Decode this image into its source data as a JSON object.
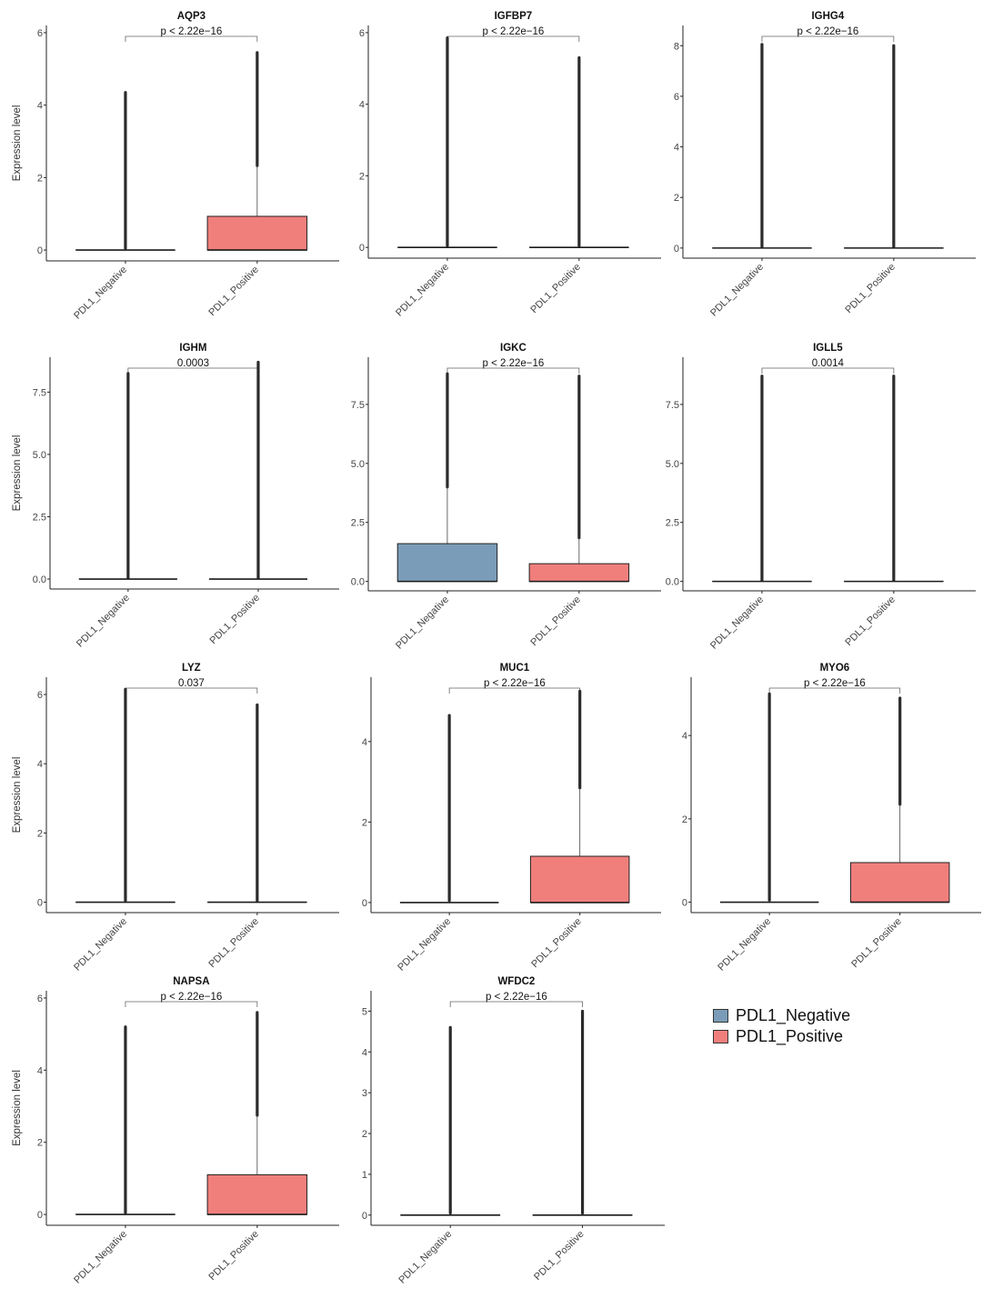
{
  "legend": {
    "items": [
      {
        "label": "PDL1_Negative",
        "color": "#7a9cb8"
      },
      {
        "label": "PDL1_Positive",
        "color": "#f07f7c"
      }
    ]
  },
  "chart_data": [
    {
      "type": "box",
      "title": "AQP3",
      "ylabel": "Expression level",
      "ylim": [
        -0.3,
        6.2
      ],
      "yticks": [
        "0",
        "2",
        "4",
        "6"
      ],
      "categories": [
        "PDL1_Negative",
        "PDL1_Positive"
      ],
      "pvalue": "p < 2.22e−16",
      "boxes": [
        {
          "q1": 0,
          "median": 0,
          "q3": 0,
          "whisker_high": 0,
          "outlier_max": 4.35
        },
        {
          "q1": 0,
          "median": 0,
          "q3": 0.93,
          "whisker_high": 2.33,
          "outlier_max": 5.45
        }
      ]
    },
    {
      "type": "box",
      "title": "IGFBP7",
      "ylabel": "",
      "ylim": [
        -0.3,
        6.2
      ],
      "yticks": [
        "0",
        "2",
        "4",
        "6"
      ],
      "categories": [
        "PDL1_Negative",
        "PDL1_Positive"
      ],
      "pvalue": "p < 2.22e−16",
      "boxes": [
        {
          "q1": 0,
          "median": 0,
          "q3": 0,
          "whisker_high": 0,
          "outlier_max": 5.85
        },
        {
          "q1": 0,
          "median": 0,
          "q3": 0,
          "whisker_high": 0,
          "outlier_max": 5.3
        }
      ]
    },
    {
      "type": "box",
      "title": "IGHG4",
      "ylabel": "",
      "ylim": [
        -0.4,
        8.8
      ],
      "yticks": [
        "0",
        "2",
        "4",
        "6",
        "8"
      ],
      "categories": [
        "PDL1_Negative",
        "PDL1_Positive"
      ],
      "pvalue": "p < 2.22e−16",
      "boxes": [
        {
          "q1": 0,
          "median": 0,
          "q3": 0,
          "whisker_high": 0,
          "outlier_max": 8.05
        },
        {
          "q1": 0,
          "median": 0,
          "q3": 0,
          "whisker_high": 0,
          "outlier_max": 8.0
        }
      ]
    },
    {
      "type": "box",
      "title": "IGHM",
      "ylabel": "Expression level",
      "ylim": [
        -0.4,
        8.9
      ],
      "yticks": [
        "0.0",
        "2.5",
        "5.0",
        "7.5"
      ],
      "categories": [
        "PDL1_Negative",
        "PDL1_Positive"
      ],
      "pvalue": "0.0003",
      "boxes": [
        {
          "q1": 0,
          "median": 0,
          "q3": 0,
          "whisker_high": 0,
          "outlier_max": 8.25
        },
        {
          "q1": 0,
          "median": 0,
          "q3": 0,
          "whisker_high": 0,
          "outlier_max": 8.7
        }
      ]
    },
    {
      "type": "box",
      "title": "IGKC",
      "ylabel": "",
      "ylim": [
        -0.4,
        9.5
      ],
      "yticks": [
        "0.0",
        "2.5",
        "5.0",
        "7.5"
      ],
      "categories": [
        "PDL1_Negative",
        "PDL1_Positive"
      ],
      "pvalue": "p < 2.22e−16",
      "boxes": [
        {
          "q1": 0,
          "median": 0,
          "q3": 1.6,
          "whisker_high": 4.0,
          "outlier_max": 8.8
        },
        {
          "q1": 0,
          "median": 0,
          "q3": 0.75,
          "whisker_high": 1.85,
          "outlier_max": 8.7
        }
      ]
    },
    {
      "type": "box",
      "title": "IGLL5",
      "ylabel": "",
      "ylim": [
        -0.4,
        9.5
      ],
      "yticks": [
        "0.0",
        "2.5",
        "5.0",
        "7.5"
      ],
      "categories": [
        "PDL1_Negative",
        "PDL1_Positive"
      ],
      "pvalue": "0.0014",
      "boxes": [
        {
          "q1": 0,
          "median": 0,
          "q3": 0,
          "whisker_high": 0,
          "outlier_max": 8.7
        },
        {
          "q1": 0,
          "median": 0,
          "q3": 0,
          "whisker_high": 0,
          "outlier_max": 8.7
        }
      ]
    },
    {
      "type": "box",
      "title": "LYZ",
      "ylabel": "Expression level",
      "ylim": [
        -0.3,
        6.5
      ],
      "yticks": [
        "0",
        "2",
        "4",
        "6"
      ],
      "categories": [
        "PDL1_Negative",
        "PDL1_Positive"
      ],
      "pvalue": "0.037",
      "boxes": [
        {
          "q1": 0,
          "median": 0,
          "q3": 0,
          "whisker_high": 0,
          "outlier_max": 6.15
        },
        {
          "q1": 0,
          "median": 0,
          "q3": 0,
          "whisker_high": 0,
          "outlier_max": 5.7
        }
      ]
    },
    {
      "type": "box",
      "title": "MUC1",
      "ylabel": "",
      "ylim": [
        -0.25,
        5.6
      ],
      "yticks": [
        "0",
        "2",
        "4"
      ],
      "categories": [
        "PDL1_Negative",
        "PDL1_Positive"
      ],
      "pvalue": "p < 2.22e−16",
      "boxes": [
        {
          "q1": 0,
          "median": 0,
          "q3": 0,
          "whisker_high": 0,
          "outlier_max": 4.65
        },
        {
          "q1": 0,
          "median": 0,
          "q3": 1.15,
          "whisker_high": 2.85,
          "outlier_max": 5.25
        }
      ]
    },
    {
      "type": "box",
      "title": "MYO6",
      "ylabel": "",
      "ylim": [
        -0.25,
        5.4
      ],
      "yticks": [
        "0",
        "2",
        "4"
      ],
      "categories": [
        "PDL1_Negative",
        "PDL1_Positive"
      ],
      "pvalue": "p < 2.22e−16",
      "boxes": [
        {
          "q1": 0,
          "median": 0,
          "q3": 0,
          "whisker_high": 0,
          "outlier_max": 5.0
        },
        {
          "q1": 0,
          "median": 0,
          "q3": 0.95,
          "whisker_high": 2.35,
          "outlier_max": 4.9
        }
      ]
    },
    {
      "type": "box",
      "title": "NAPSA",
      "ylabel": "Expression level",
      "ylim": [
        -0.3,
        6.2
      ],
      "yticks": [
        "0",
        "2",
        "4",
        "6"
      ],
      "categories": [
        "PDL1_Negative",
        "PDL1_Positive"
      ],
      "pvalue": "p < 2.22e−16",
      "boxes": [
        {
          "q1": 0,
          "median": 0,
          "q3": 0,
          "whisker_high": 0,
          "outlier_max": 5.2
        },
        {
          "q1": 0,
          "median": 0,
          "q3": 1.1,
          "whisker_high": 2.75,
          "outlier_max": 5.6
        }
      ]
    },
    {
      "type": "box",
      "title": "WFDC2",
      "ylabel": "",
      "ylim": [
        -0.25,
        5.5
      ],
      "yticks": [
        "0",
        "1",
        "2",
        "3",
        "4",
        "5"
      ],
      "categories": [
        "PDL1_Negative",
        "PDL1_Positive"
      ],
      "pvalue": "p < 2.22e−16",
      "boxes": [
        {
          "q1": 0,
          "median": 0,
          "q3": 0,
          "whisker_high": 0,
          "outlier_max": 4.6
        },
        {
          "q1": 0,
          "median": 0,
          "q3": 0,
          "whisker_high": 0,
          "outlier_max": 5.0
        }
      ]
    }
  ]
}
